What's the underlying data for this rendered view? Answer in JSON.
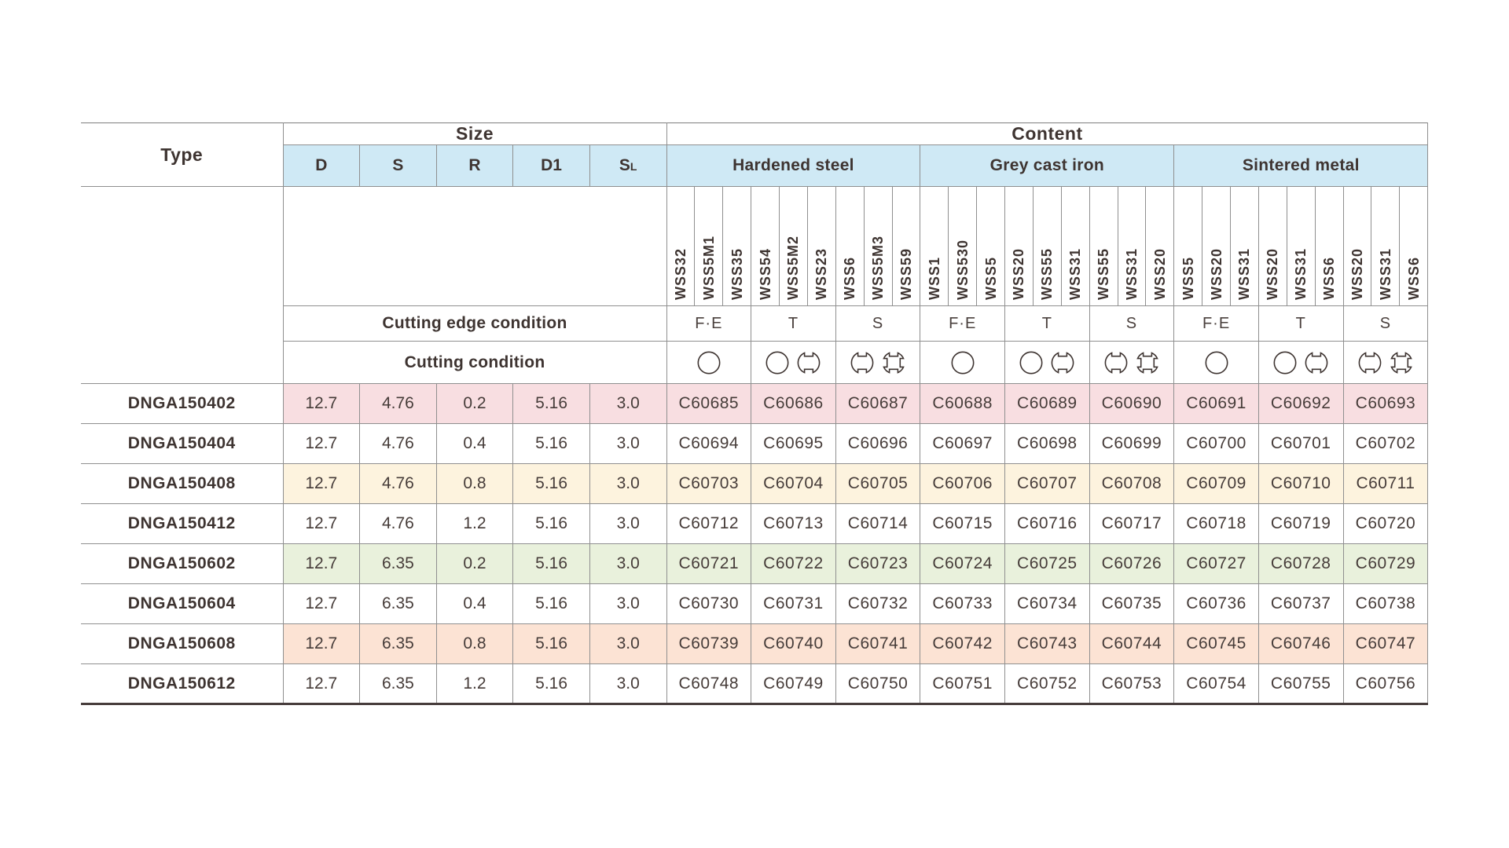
{
  "table": {
    "type_header": "Type",
    "size_header": "Size",
    "content_header": "Content",
    "size_columns": [
      {
        "main": "D",
        "sub": ""
      },
      {
        "main": "S",
        "sub": ""
      },
      {
        "main": "R",
        "sub": ""
      },
      {
        "main": "D1",
        "sub": ""
      },
      {
        "main": "S",
        "sub": "L"
      }
    ],
    "groups": [
      {
        "label": "Hardened steel",
        "grades": [
          "WSS32",
          "WSS5M1",
          "WSS35",
          "WSS54",
          "WSS5M2",
          "WSS23",
          "WSS6",
          "WSS5M3",
          "WSS59"
        ]
      },
      {
        "label": "Grey cast iron",
        "grades": [
          "WSS1",
          "WSS530",
          "WSS5",
          "WSS20",
          "WSS55",
          "WSS31",
          "WSS55",
          "WSS31",
          "WSS20"
        ]
      },
      {
        "label": "Sintered metal",
        "grades": [
          "WSS5",
          "WSS20",
          "WSS31",
          "WSS20",
          "WSS31",
          "WSS6",
          "WSS20",
          "WSS31",
          "WSS6"
        ]
      }
    ],
    "cutting_edge_row_label": "Cutting edge condition",
    "cutting_condition_row_label": "Cutting condition",
    "edge_conditions": [
      "F·E",
      "T",
      "S",
      "F·E",
      "T",
      "S",
      "F·E",
      "T",
      "S"
    ],
    "cutting_conditions": [
      [
        "continuous"
      ],
      [
        "continuous",
        "interrupted"
      ],
      [
        "interrupted",
        "heavy-interrupted"
      ],
      [
        "continuous"
      ],
      [
        "continuous",
        "interrupted"
      ],
      [
        "interrupted",
        "heavy-interrupted"
      ],
      [
        "continuous"
      ],
      [
        "continuous",
        "interrupted"
      ],
      [
        "interrupted",
        "heavy-interrupted"
      ]
    ],
    "rows": [
      {
        "type": "DNGA150402",
        "size": [
          "12.7",
          "4.76",
          "0.2",
          "5.16",
          "3.0"
        ],
        "codes": [
          "C60685",
          "C60686",
          "C60687",
          "C60688",
          "C60689",
          "C60690",
          "C60691",
          "C60692",
          "C60693"
        ],
        "bg": "#f8dee1"
      },
      {
        "type": "DNGA150404",
        "size": [
          "12.7",
          "4.76",
          "0.4",
          "5.16",
          "3.0"
        ],
        "codes": [
          "C60694",
          "C60695",
          "C60696",
          "C60697",
          "C60698",
          "C60699",
          "C60700",
          "C60701",
          "C60702"
        ],
        "bg": "#ffffff"
      },
      {
        "type": "DNGA150408",
        "size": [
          "12.7",
          "4.76",
          "0.8",
          "5.16",
          "3.0"
        ],
        "codes": [
          "C60703",
          "C60704",
          "C60705",
          "C60706",
          "C60707",
          "C60708",
          "C60709",
          "C60710",
          "C60711"
        ],
        "bg": "#fdf3de"
      },
      {
        "type": "DNGA150412",
        "size": [
          "12.7",
          "4.76",
          "1.2",
          "5.16",
          "3.0"
        ],
        "codes": [
          "C60712",
          "C60713",
          "C60714",
          "C60715",
          "C60716",
          "C60717",
          "C60718",
          "C60719",
          "C60720"
        ],
        "bg": "#ffffff"
      },
      {
        "type": "DNGA150602",
        "size": [
          "12.7",
          "6.35",
          "0.2",
          "5.16",
          "3.0"
        ],
        "codes": [
          "C60721",
          "C60722",
          "C60723",
          "C60724",
          "C60725",
          "C60726",
          "C60727",
          "C60728",
          "C60729"
        ],
        "bg": "#e9f1dc"
      },
      {
        "type": "DNGA150604",
        "size": [
          "12.7",
          "6.35",
          "0.4",
          "5.16",
          "3.0"
        ],
        "codes": [
          "C60730",
          "C60731",
          "C60732",
          "C60733",
          "C60734",
          "C60735",
          "C60736",
          "C60737",
          "C60738"
        ],
        "bg": "#ffffff"
      },
      {
        "type": "DNGA150608",
        "size": [
          "12.7",
          "6.35",
          "0.8",
          "5.16",
          "3.0"
        ],
        "codes": [
          "C60739",
          "C60740",
          "C60741",
          "C60742",
          "C60743",
          "C60744",
          "C60745",
          "C60746",
          "C60747"
        ],
        "bg": "#fce3d4"
      },
      {
        "type": "DNGA150612",
        "size": [
          "12.7",
          "6.35",
          "1.2",
          "5.16",
          "3.0"
        ],
        "codes": [
          "C60748",
          "C60749",
          "C60750",
          "C60751",
          "C60752",
          "C60753",
          "C60754",
          "C60755",
          "C60756"
        ],
        "bg": "#ffffff"
      }
    ],
    "colors": {
      "header_blue": "#cfe9f5",
      "row_pink": "#f8dee1",
      "row_cream": "#fdf3de",
      "row_green": "#e9f1dc",
      "row_peach": "#fce3d4",
      "grid_line": "#8f8f8f",
      "text": "#3e3431"
    }
  }
}
